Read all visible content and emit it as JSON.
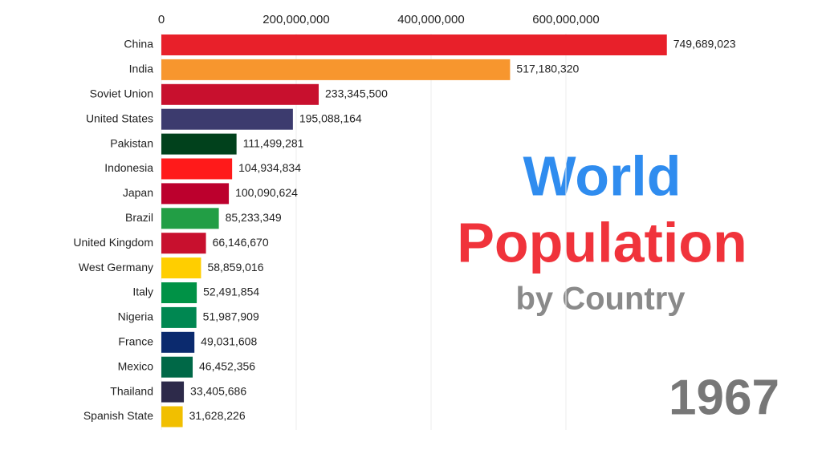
{
  "chart_data": {
    "type": "bar",
    "orientation": "horizontal",
    "title": "World",
    "title_2": "Population",
    "subtitle": "by Country",
    "annotation": "1967",
    "categories": [
      "China",
      "India",
      "Soviet Union",
      "United States",
      "Pakistan",
      "Indonesia",
      "Japan",
      "Brazil",
      "United Kingdom",
      "West Germany",
      "Italy",
      "Nigeria",
      "France",
      "Mexico",
      "Thailand",
      "Spanish State"
    ],
    "values": [
      749689023,
      517180320,
      233345500,
      195088164,
      111499281,
      104934834,
      100090624,
      85233349,
      66146670,
      58859016,
      52491854,
      51987909,
      49031608,
      46452356,
      33405686,
      31628226
    ],
    "value_labels": [
      "749,689,023",
      "517,180,320",
      "233,345,500",
      "195,088,164",
      "111,499,281",
      "104,934,834",
      "100,090,624",
      "85,233,349",
      "66,146,670",
      "58,859,016",
      "52,491,854",
      "51,987,909",
      "49,031,608",
      "46,452,356",
      "33,405,686",
      "31,628,226"
    ],
    "colors": [
      "#e8202a",
      "#f7962e",
      "#c8102e",
      "#3c3b6e",
      "#01411c",
      "#ff1a1a",
      "#bc002d",
      "#229e45",
      "#c8102e",
      "#ffce00",
      "#009246",
      "#008751",
      "#0b2a6e",
      "#006847",
      "#2d2a4a",
      "#f1bf00"
    ],
    "xlim": [
      0,
      900000000
    ],
    "xticks": [
      0,
      {
        "value": 200000000,
        "label": "200,000,000"
      },
      {
        "value": 400000000,
        "label": "400,000,000"
      },
      {
        "value": 600000000,
        "label": "600,000,000"
      }
    ],
    "grid": true
  }
}
